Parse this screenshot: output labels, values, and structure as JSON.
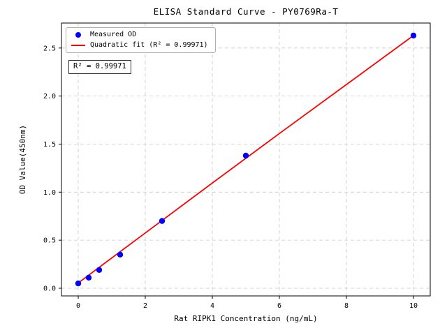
{
  "chart_data": {
    "type": "scatter",
    "title": "ELISA Standard Curve - PY0769Ra-T",
    "xlabel": "Rat RIPK1 Concentration (ng/mL)",
    "ylabel": "OD Value(450nm)",
    "xlim": [
      -0.5,
      10.5
    ],
    "ylim": [
      -0.08,
      2.76
    ],
    "xticks": [
      0,
      2,
      4,
      6,
      8,
      10
    ],
    "yticks": [
      0.0,
      0.5,
      1.0,
      1.5,
      2.0,
      2.5
    ],
    "grid": true,
    "grid_style": "dashed",
    "grid_color": "#c8c8c8",
    "annotation": "R² = 0.99971",
    "legend": {
      "position": "upper-left",
      "entries": [
        {
          "label": "Measured OD",
          "marker": "dot",
          "color": "#0000ff"
        },
        {
          "label": "Quadratic fit (R² = 0.99971)",
          "marker": "line",
          "color": "#ff0000"
        }
      ]
    },
    "series": [
      {
        "name": "Measured OD",
        "type": "scatter",
        "color": "#0000ff",
        "x": [
          0,
          0.3125,
          0.625,
          1.25,
          2.5,
          5,
          10
        ],
        "y": [
          0.05,
          0.11,
          0.19,
          0.35,
          0.7,
          1.38,
          2.63
        ]
      },
      {
        "name": "Quadratic fit",
        "type": "line",
        "color": "#ff0000",
        "x": [
          0,
          2,
          4,
          6,
          8,
          10
        ],
        "y": [
          0.055,
          0.575,
          1.095,
          1.61,
          2.12,
          2.63
        ]
      }
    ]
  }
}
